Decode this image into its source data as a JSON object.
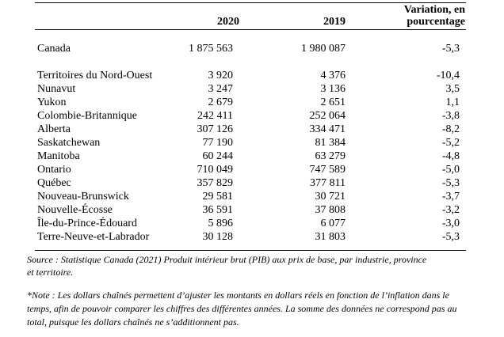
{
  "table": {
    "columns": {
      "year1": "2020",
      "year2": "2019",
      "variation_lines": [
        "Variation, en",
        "pourcentage"
      ]
    },
    "rows": [
      {
        "label": "Canada",
        "y2020": "1 875 563",
        "y2019": "1 980 087",
        "variation": "-5,3"
      },
      {
        "label": "Territoires du Nord-Ouest",
        "y2020": "3 920",
        "y2019": "4 376",
        "variation": "-10,4"
      },
      {
        "label": "Nunavut",
        "y2020": "3 247",
        "y2019": "3 136",
        "variation": "3,5"
      },
      {
        "label": "Yukon",
        "y2020": "2 679",
        "y2019": "2 651",
        "variation": "1,1"
      },
      {
        "label": "Colombie-Britannique",
        "y2020": "242 411",
        "y2019": "252 064",
        "variation": "-3,8"
      },
      {
        "label": "Alberta",
        "y2020": "307 126",
        "y2019": "334 471",
        "variation": "-8,2"
      },
      {
        "label": "Saskatchewan",
        "y2020": "77 190",
        "y2019": "81 384",
        "variation": "-5,2"
      },
      {
        "label": "Manitoba",
        "y2020": "60 244",
        "y2019": "63 279",
        "variation": "-4,8"
      },
      {
        "label": "Ontario",
        "y2020": "710 049",
        "y2019": "747 589",
        "variation": "-5,0"
      },
      {
        "label": "Québec",
        "y2020": "357 829",
        "y2019": "377 811",
        "variation": "-5,3"
      },
      {
        "label": "Nouveau-Brunswick",
        "y2020": "29 581",
        "y2019": "30 721",
        "variation": "-3,7"
      },
      {
        "label": "Nouvelle-Écosse",
        "y2020": "36 591",
        "y2019": "37 808",
        "variation": "-3,2"
      },
      {
        "label": "Île-du-Prince-Édouard",
        "y2020": "5 896",
        "y2019": "6 077",
        "variation": "-3,0"
      },
      {
        "label": "Terre-Neuve-et-Labrador",
        "y2020": "30 128",
        "y2019": "31 803",
        "variation": "-5,3"
      }
    ]
  },
  "source": {
    "lines": [
      "Source : Statistique Canada (2021) Produit intérieur brut (PIB) aux prix de base, par industrie, province",
      "et territoire."
    ]
  },
  "note": {
    "lines": [
      "*Note : Les dollars chaînés permettent d’ajuster les montants en dollars réels en fonction de l’inflation dans le",
      "temps, afin de pouvoir comparer les chiffres des différentes années. La somme des données ne correspond pas au",
      "total, puisque les dollars chaînés ne s’additionnent pas."
    ]
  },
  "colors": {
    "text": "#000000",
    "rule": "#000000",
    "background": "#ffffff"
  }
}
